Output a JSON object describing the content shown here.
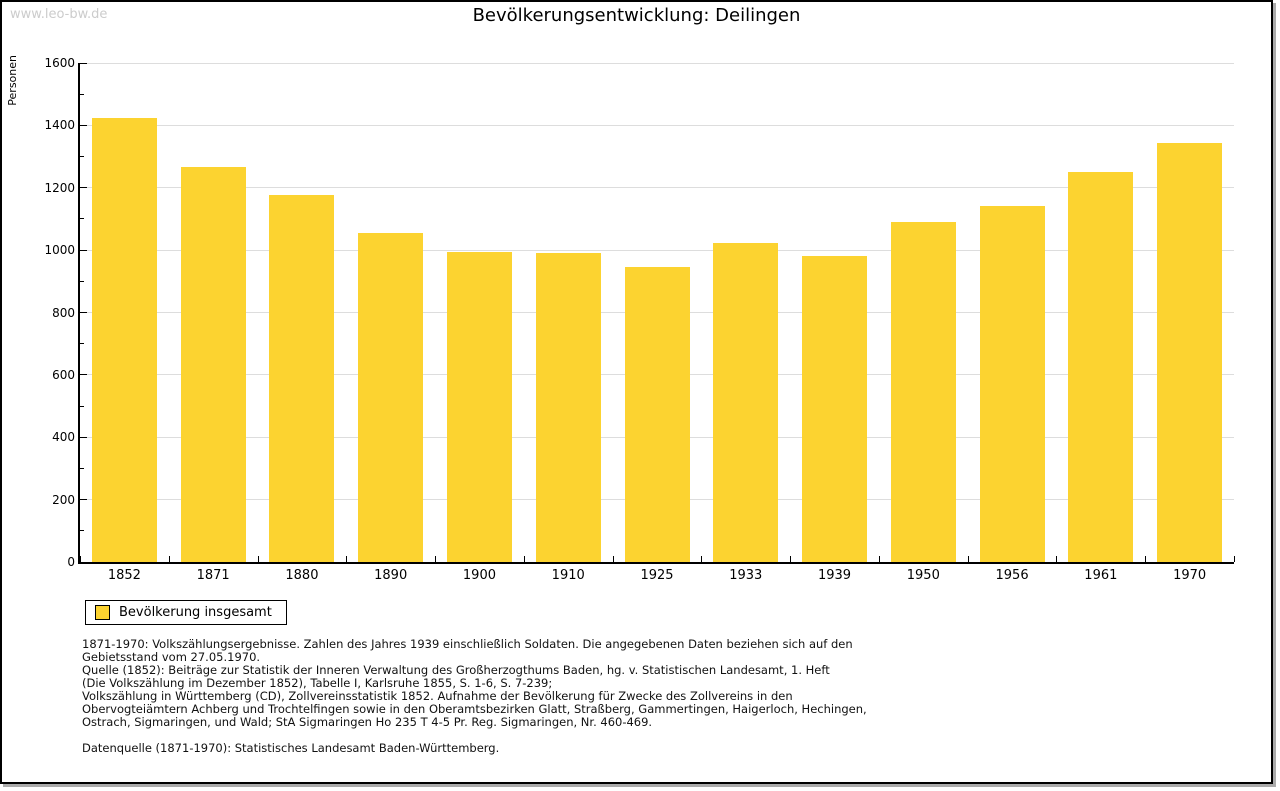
{
  "page": {
    "watermark": "www.leo-bw.de",
    "title": "Bevölkerungsentwicklung: Deilingen"
  },
  "chart_data": {
    "type": "bar",
    "title": "Bevölkerungsentwicklung: Deilingen",
    "xlabel": "",
    "ylabel": "Personen",
    "categories": [
      "1852",
      "1871",
      "1880",
      "1890",
      "1900",
      "1910",
      "1925",
      "1933",
      "1939",
      "1950",
      "1956",
      "1961",
      "1970"
    ],
    "values": [
      1424,
      1268,
      1176,
      1054,
      993,
      991,
      946,
      1022,
      980,
      1089,
      1140,
      1251,
      1342
    ],
    "series_name": "Bevölkerung insgesamt",
    "ylim": [
      0,
      1600
    ],
    "ytick_step": 200,
    "ytick_minor_step": 100,
    "yticks": [
      0,
      200,
      400,
      600,
      800,
      1000,
      1200,
      1400,
      1600
    ],
    "grid": true,
    "legend_position": "bottom-left"
  },
  "colors": {
    "bar": "#FCD330",
    "gridline": "#DDDDDD",
    "axis": "#000000",
    "watermark": "#CCCCCC"
  },
  "footnotes": {
    "para1_lines": [
      "1871-1970: Volkszählungsergebnisse. Zahlen des Jahres 1939 einschließlich Soldaten. Die angegebenen Daten beziehen sich auf den",
      "Gebietsstand vom 27.05.1970.",
      "Quelle (1852): Beiträge zur Statistik der Inneren Verwaltung des Großherzogthums Baden, hg. v. Statistischen Landesamt, 1. Heft",
      "(Die Volkszählung im Dezember 1852), Tabelle I, Karlsruhe 1855, S. 1-6, S. 7-239;",
      "Volkszählung in Württemberg (CD), Zollvereinsstatistik 1852. Aufnahme der Bevölkerung für Zwecke des Zollvereins in den",
      "Obervogteiämtern Achberg und Trochtelfingen sowie in den Oberamtsbezirken Glatt, Straßberg, Gammertingen, Haigerloch, Hechingen,",
      "Ostrach, Sigmaringen, und Wald; StA Sigmaringen Ho 235 T 4-5 Pr. Reg. Sigmaringen, Nr. 460-469."
    ],
    "para2": "Datenquelle (1871-1970): Statistisches Landesamt Baden-Württemberg."
  }
}
